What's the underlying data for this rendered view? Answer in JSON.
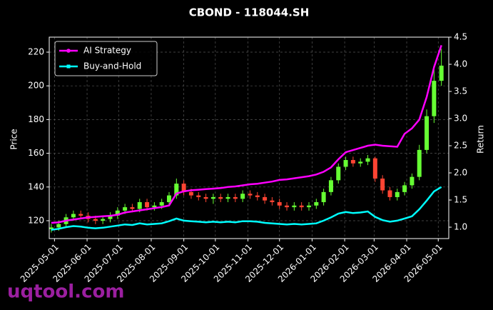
{
  "chart_data": {
    "type": "candlestick",
    "title": "CBOND - 118044.SH",
    "ylabel": "Price",
    "y2label": "Return",
    "watermark": "uqtool.com",
    "x": [
      "2025-04-28",
      "2025-05-05",
      "2025-05-12",
      "2025-05-19",
      "2025-05-26",
      "2025-06-02",
      "2025-06-09",
      "2025-06-16",
      "2025-06-23",
      "2025-06-30",
      "2025-07-07",
      "2025-07-14",
      "2025-07-21",
      "2025-07-28",
      "2025-08-04",
      "2025-08-11",
      "2025-08-18",
      "2025-08-25",
      "2025-09-01",
      "2025-09-08",
      "2025-09-15",
      "2025-09-22",
      "2025-09-29",
      "2025-10-06",
      "2025-10-13",
      "2025-10-20",
      "2025-10-27",
      "2025-11-03",
      "2025-11-10",
      "2025-11-17",
      "2025-11-24",
      "2025-12-01",
      "2025-12-08",
      "2025-12-15",
      "2025-12-22",
      "2025-12-29",
      "2026-01-05",
      "2026-01-12",
      "2026-01-19",
      "2026-01-26",
      "2026-02-02",
      "2026-02-09",
      "2026-02-16",
      "2026-02-23",
      "2026-03-02",
      "2026-03-09",
      "2026-03-16",
      "2026-03-23",
      "2026-03-30",
      "2026-04-06",
      "2026-04-13",
      "2026-04-20",
      "2026-04-27",
      "2026-05-04"
    ],
    "open": [
      115,
      116,
      118,
      122,
      124,
      123,
      121,
      120,
      121,
      123,
      126,
      128,
      127,
      131,
      128,
      129,
      131,
      135,
      142,
      137,
      135,
      134,
      133,
      134,
      133,
      134,
      133,
      136,
      135,
      134,
      132,
      131,
      129,
      128,
      129,
      128,
      129,
      131,
      137,
      144,
      152,
      156,
      154,
      155,
      157,
      145,
      138,
      134,
      137,
      141,
      146,
      162,
      182,
      203
    ],
    "high": [
      118,
      120,
      124,
      126,
      126,
      125,
      123,
      123,
      125,
      128,
      130,
      130,
      133,
      133,
      131,
      133,
      137,
      145,
      144,
      139,
      137,
      136,
      136,
      136,
      136,
      136,
      138,
      138,
      137,
      136,
      134,
      133,
      131,
      131,
      131,
      131,
      133,
      139,
      146,
      154,
      158,
      158,
      157,
      159,
      158,
      147,
      140,
      139,
      143,
      148,
      165,
      186,
      212,
      222
    ],
    "low": [
      113,
      114,
      116,
      120,
      121,
      119,
      118,
      118,
      119,
      121,
      124,
      125,
      125,
      126,
      126,
      127,
      129,
      133,
      135,
      133,
      132,
      131,
      130,
      131,
      131,
      131,
      131,
      133,
      132,
      130,
      129,
      127,
      126,
      126,
      126,
      126,
      127,
      129,
      135,
      142,
      150,
      152,
      152,
      153,
      143,
      136,
      132,
      132,
      135,
      139,
      144,
      160,
      178,
      200
    ],
    "close": [
      116,
      118,
      122,
      124,
      123,
      121,
      120,
      121,
      123,
      126,
      128,
      127,
      131,
      128,
      129,
      131,
      135,
      142,
      137,
      135,
      134,
      133,
      134,
      133,
      134,
      133,
      136,
      135,
      134,
      132,
      131,
      129,
      128,
      129,
      128,
      129,
      131,
      137,
      144,
      152,
      156,
      154,
      155,
      157,
      145,
      138,
      134,
      137,
      141,
      146,
      162,
      182,
      203,
      212
    ],
    "up_color": "#66ff33",
    "down_color": "#ff4433",
    "series": [
      {
        "name": "AI Strategy",
        "color": "#ff00ff",
        "axis": "y2",
        "marker": "circle",
        "values": [
          1.08,
          1.09,
          1.12,
          1.14,
          1.16,
          1.18,
          1.19,
          1.2,
          1.21,
          1.23,
          1.27,
          1.29,
          1.31,
          1.33,
          1.35,
          1.37,
          1.4,
          1.62,
          1.66,
          1.68,
          1.69,
          1.7,
          1.71,
          1.72,
          1.74,
          1.75,
          1.77,
          1.79,
          1.8,
          1.82,
          1.84,
          1.87,
          1.88,
          1.9,
          1.92,
          1.94,
          1.97,
          2.02,
          2.1,
          2.25,
          2.38,
          2.42,
          2.46,
          2.5,
          2.52,
          2.5,
          2.49,
          2.48,
          2.72,
          2.82,
          2.98,
          3.4,
          3.95,
          4.35
        ]
      },
      {
        "name": "Buy-and-Hold",
        "color": "#00ffff",
        "axis": "y2",
        "marker": "square",
        "values": [
          0.95,
          0.97,
          1.0,
          1.02,
          1.01,
          0.99,
          0.98,
          0.99,
          1.01,
          1.03,
          1.05,
          1.04,
          1.07,
          1.05,
          1.06,
          1.07,
          1.11,
          1.16,
          1.12,
          1.11,
          1.1,
          1.09,
          1.1,
          1.09,
          1.1,
          1.09,
          1.11,
          1.11,
          1.1,
          1.08,
          1.07,
          1.06,
          1.05,
          1.06,
          1.05,
          1.06,
          1.07,
          1.12,
          1.18,
          1.25,
          1.28,
          1.26,
          1.27,
          1.29,
          1.19,
          1.13,
          1.1,
          1.12,
          1.16,
          1.2,
          1.33,
          1.49,
          1.66,
          1.74
        ]
      }
    ],
    "xlim": [
      "2025-04-26",
      "2026-05-11"
    ],
    "xticks": [
      "2025-05-01",
      "2025-06-01",
      "2025-07-01",
      "2025-08-01",
      "2025-09-01",
      "2025-10-01",
      "2025-11-01",
      "2025-12-01",
      "2026-01-01",
      "2026-02-01",
      "2026-03-01",
      "2026-04-01",
      "2026-05-01"
    ],
    "ylim": [
      109.4,
      228.9
    ],
    "yticks": [
      120,
      140,
      160,
      180,
      200,
      220
    ],
    "y2lim": [
      0.79,
      4.5
    ],
    "y2ticks": [
      {
        "value": 1,
        "label": "1.0"
      },
      1.5,
      {
        "value": 2,
        "label": "2.0"
      },
      2.5,
      {
        "value": 3,
        "label": "3.0"
      },
      3.5,
      {
        "value": 4,
        "label": "4.0"
      },
      4.5
    ],
    "grid": true,
    "legend": "upper left"
  }
}
